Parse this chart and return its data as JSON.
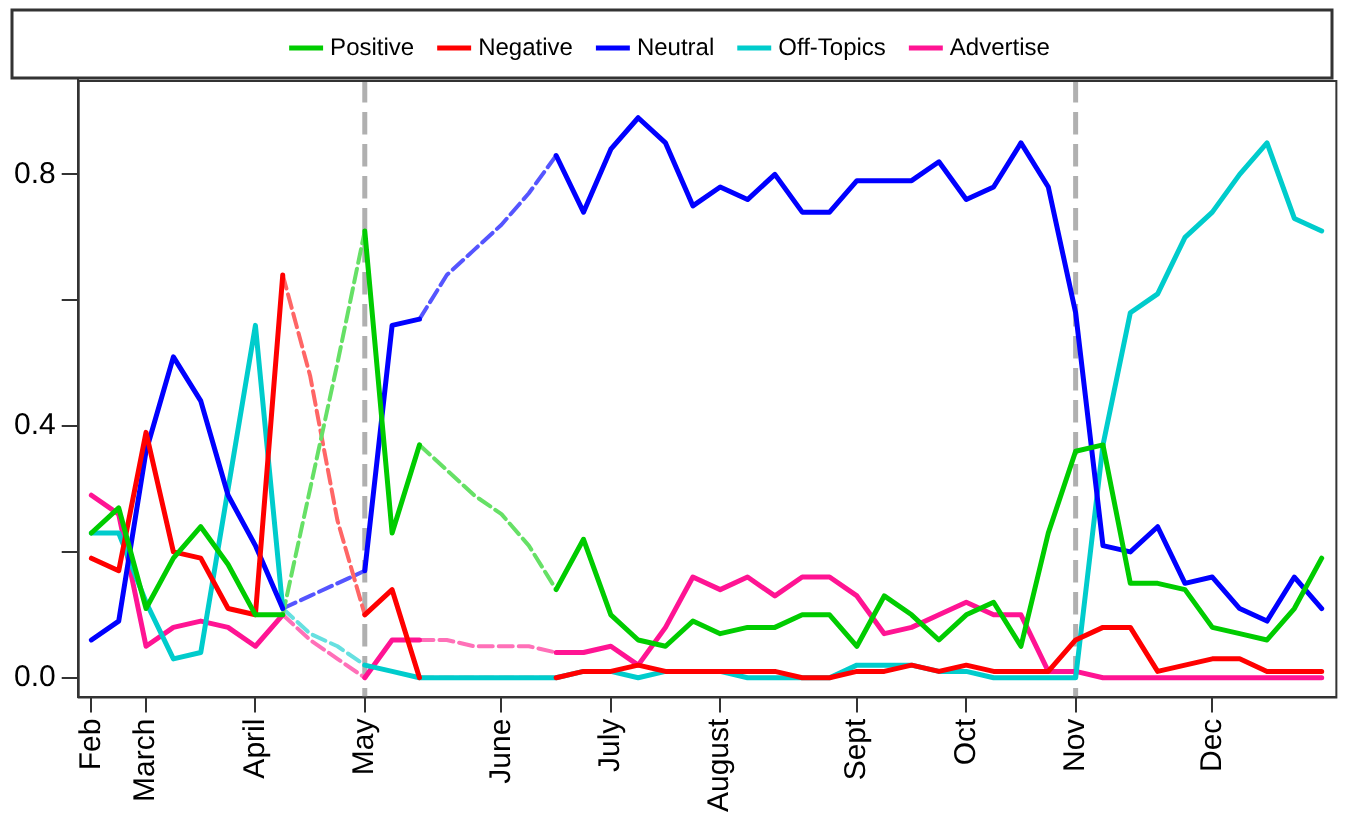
{
  "chart_data": {
    "type": "line",
    "marker": "none",
    "grid": false,
    "legend": "top",
    "categories": [
      "Feb",
      null,
      "March",
      null,
      null,
      null,
      "April",
      null,
      null,
      null,
      "May",
      null,
      null,
      null,
      null,
      "June",
      null,
      null,
      null,
      "July",
      null,
      null,
      null,
      "August",
      null,
      null,
      null,
      null,
      "Sept",
      null,
      null,
      null,
      "Oct",
      null,
      null,
      null,
      "Nov",
      null,
      null,
      null,
      null,
      "Dec",
      null,
      null,
      null,
      null
    ],
    "ylim": [
      -0.03,
      0.95
    ],
    "yticks": [
      {
        "value": 0,
        "label": "0.0"
      },
      {
        "value": 0.2,
        "label": null
      },
      {
        "value": 0.4,
        "label": "0.4"
      },
      {
        "value": 0.6,
        "label": null
      },
      {
        "value": 0.8,
        "label": "0.8"
      }
    ],
    "ref_lines": [
      {
        "axis": "x",
        "value": "May",
        "color": "#b0b0b0",
        "line_style": "dashed"
      },
      {
        "axis": "x",
        "value": "Nov",
        "color": "#b0b0b0",
        "line_style": "dashed"
      }
    ],
    "series": [
      {
        "name": "Positive",
        "color": "#00cc00",
        "line_style": "solid",
        "values": [
          0.23,
          0.27,
          0.11,
          0.19,
          0.24,
          0.18,
          0.1,
          0.1,
          null,
          null,
          0.71,
          0.23,
          0.37,
          null,
          null,
          null,
          null,
          0.14,
          0.22,
          0.1,
          0.06,
          0.05,
          0.09,
          0.07,
          0.08,
          0.08,
          0.1,
          0.1,
          0.05,
          0.13,
          0.1,
          0.06,
          0.1,
          0.12,
          0.05,
          0.23,
          0.36,
          0.37,
          0.15,
          0.15,
          0.14,
          0.08,
          0.07,
          0.06,
          0.11,
          0.19
        ]
      },
      {
        "name": "Negative",
        "color": "#ff0000",
        "line_style": "solid",
        "values": [
          0.19,
          0.17,
          0.39,
          0.2,
          0.19,
          0.11,
          0.1,
          0.64,
          null,
          null,
          0.1,
          0.14,
          0,
          null,
          null,
          null,
          null,
          0,
          0.01,
          0.01,
          0.02,
          0.01,
          0.01,
          0.01,
          0.01,
          0.01,
          0,
          0,
          0.01,
          0.01,
          0.02,
          0.01,
          0.02,
          0.01,
          0.01,
          0.01,
          0.06,
          0.08,
          0.08,
          0.01,
          0.02,
          0.03,
          0.03,
          0.01,
          0.01,
          0.01
        ]
      },
      {
        "name": "Neutral",
        "color": "#0000ff",
        "line_style": "solid",
        "values": [
          0.06,
          0.09,
          0.36,
          0.51,
          0.44,
          0.29,
          0.21,
          0.11,
          null,
          null,
          0.17,
          0.56,
          0.57,
          null,
          null,
          null,
          null,
          0.83,
          0.74,
          0.84,
          0.89,
          0.85,
          0.75,
          0.78,
          0.76,
          0.8,
          0.74,
          0.74,
          0.79,
          0.79,
          0.79,
          0.82,
          0.76,
          0.78,
          0.85,
          0.78,
          0.58,
          0.21,
          0.2,
          0.24,
          0.15,
          0.16,
          0.11,
          0.09,
          0.16,
          0.11
        ]
      },
      {
        "name": "Off-Topics",
        "color": "#00cccc",
        "line_style": "solid",
        "values": [
          0.23,
          0.23,
          0.12,
          0.03,
          0.04,
          0.3,
          0.56,
          0.11,
          null,
          null,
          0.02,
          0.01,
          0,
          0,
          0,
          0,
          0,
          0,
          0.01,
          0.01,
          0,
          0.01,
          0.01,
          0.01,
          0,
          0,
          0,
          0,
          0.02,
          0.02,
          0.02,
          0.01,
          0.01,
          0,
          0,
          0,
          0,
          0.37,
          0.58,
          0.61,
          0.7,
          0.74,
          0.8,
          0.85,
          0.73,
          0.71
        ]
      },
      {
        "name": "Advertise",
        "color": "#ff1493",
        "line_style": "solid",
        "values": [
          0.29,
          0.26,
          0.05,
          0.08,
          0.09,
          0.08,
          0.05,
          0.1,
          null,
          null,
          0,
          0.06,
          0.06,
          null,
          null,
          null,
          null,
          0.04,
          0.04,
          0.05,
          0.02,
          0.08,
          0.16,
          0.14,
          0.16,
          0.13,
          0.16,
          0.16,
          0.13,
          0.07,
          0.08,
          0.1,
          0.12,
          0.1,
          0.1,
          0.01,
          0.01,
          0,
          0,
          0,
          0,
          0,
          0,
          0,
          0,
          0
        ]
      },
      {
        "color": "#66e066",
        "line_style": "dashed",
        "values": [
          null,
          null,
          null,
          null,
          null,
          null,
          null,
          0.1,
          0.3,
          0.5,
          0.71,
          null,
          0.37,
          0.33,
          0.29,
          0.26,
          0.21,
          0.14,
          null,
          null,
          null,
          null,
          null,
          null,
          null,
          null,
          null,
          null,
          null,
          null,
          null,
          null,
          null,
          null,
          null,
          null,
          null,
          null,
          null,
          null,
          null,
          null,
          null,
          null,
          null,
          null
        ]
      },
      {
        "color": "#ff6666",
        "line_style": "dashed",
        "values": [
          null,
          null,
          null,
          null,
          null,
          null,
          null,
          0.64,
          0.48,
          0.25,
          0.1,
          null,
          0,
          0,
          0,
          0,
          0,
          0,
          null,
          null,
          null,
          null,
          null,
          null,
          null,
          null,
          null,
          null,
          null,
          null,
          null,
          null,
          null,
          null,
          null,
          null,
          null,
          null,
          null,
          null,
          null,
          null,
          null,
          null,
          null,
          null
        ]
      },
      {
        "color": "#5555ff",
        "line_style": "dashed",
        "values": [
          null,
          null,
          null,
          null,
          null,
          null,
          null,
          0.11,
          0.13,
          0.15,
          0.17,
          null,
          0.57,
          0.64,
          0.68,
          0.72,
          0.77,
          0.83,
          null,
          null,
          null,
          null,
          null,
          null,
          null,
          null,
          null,
          null,
          null,
          null,
          null,
          null,
          null,
          null,
          null,
          null,
          null,
          null,
          null,
          null,
          null,
          null,
          null,
          null,
          null,
          null
        ]
      },
      {
        "color": "#66e0e0",
        "line_style": "dashed",
        "values": [
          null,
          null,
          null,
          null,
          null,
          null,
          null,
          0.11,
          0.07,
          0.05,
          0.02,
          null,
          null,
          null,
          null,
          null,
          null,
          null,
          null,
          null,
          null,
          null,
          null,
          null,
          null,
          null,
          null,
          null,
          null,
          null,
          null,
          null,
          null,
          null,
          null,
          null,
          null,
          null,
          null,
          null,
          null,
          null,
          null,
          null,
          null,
          null
        ]
      },
      {
        "color": "#ff70b8",
        "line_style": "dashed",
        "values": [
          null,
          null,
          null,
          null,
          null,
          null,
          null,
          0.1,
          0.06,
          0.03,
          0,
          null,
          0.06,
          0.06,
          0.05,
          0.05,
          0.05,
          0.04,
          null,
          null,
          null,
          null,
          null,
          null,
          null,
          null,
          null,
          null,
          null,
          null,
          null,
          null,
          null,
          null,
          null,
          null,
          null,
          null,
          null,
          null,
          null,
          null,
          null,
          null,
          null,
          null
        ]
      }
    ]
  }
}
